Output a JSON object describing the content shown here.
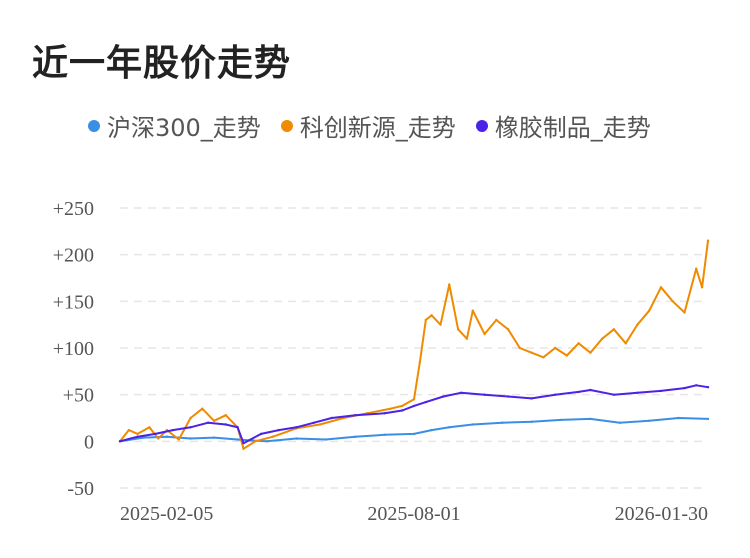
{
  "title": "近一年股价走势",
  "legend": [
    {
      "name": "沪深300_走势",
      "color": "#3a8ee6"
    },
    {
      "name": "科创新源_走势",
      "color": "#f08a00"
    },
    {
      "name": "橡胶制品_走势",
      "color": "#4a22e8"
    }
  ],
  "chart_data": {
    "type": "line",
    "title": "近一年股价走势",
    "xlabel": "",
    "ylabel": "",
    "ylim": [
      -50,
      250
    ],
    "y_ticks": [
      250,
      200,
      150,
      100,
      50,
      0,
      -50
    ],
    "y_tick_labels": [
      "+250",
      "+200",
      "+150",
      "+100",
      "+50",
      "0",
      "-50"
    ],
    "x_range": [
      0,
      1
    ],
    "x_ticks": [
      {
        "x": 0.0,
        "label": "2025-02-05"
      },
      {
        "x": 0.5,
        "label": "2025-08-01"
      },
      {
        "x": 1.0,
        "label": "2026-01-30"
      }
    ],
    "grid": true,
    "series": [
      {
        "name": "沪深300_走势",
        "color": "#3a8ee6",
        "x": [
          0,
          0.04,
          0.08,
          0.12,
          0.16,
          0.2,
          0.22,
          0.25,
          0.3,
          0.35,
          0.4,
          0.45,
          0.5,
          0.53,
          0.56,
          0.6,
          0.65,
          0.7,
          0.75,
          0.8,
          0.85,
          0.9,
          0.95,
          1.0
        ],
        "values": [
          0,
          4,
          5,
          3,
          4,
          2,
          1,
          0,
          3,
          2,
          5,
          7,
          8,
          12,
          15,
          18,
          20,
          21,
          23,
          24,
          20,
          22,
          25,
          24
        ]
      },
      {
        "name": "科创新源_走势",
        "color": "#f08a00",
        "x": [
          0,
          0.015,
          0.03,
          0.05,
          0.065,
          0.08,
          0.1,
          0.12,
          0.14,
          0.16,
          0.18,
          0.2,
          0.21,
          0.23,
          0.26,
          0.3,
          0.34,
          0.38,
          0.42,
          0.46,
          0.48,
          0.5,
          0.51,
          0.52,
          0.53,
          0.545,
          0.56,
          0.575,
          0.59,
          0.6,
          0.62,
          0.64,
          0.66,
          0.68,
          0.7,
          0.72,
          0.74,
          0.76,
          0.78,
          0.8,
          0.82,
          0.84,
          0.86,
          0.88,
          0.9,
          0.92,
          0.94,
          0.96,
          0.98,
          0.99,
          1.0
        ],
        "values": [
          0,
          12,
          8,
          15,
          3,
          12,
          2,
          25,
          35,
          22,
          28,
          15,
          -8,
          0,
          5,
          14,
          18,
          25,
          30,
          35,
          38,
          45,
          85,
          130,
          135,
          125,
          168,
          120,
          110,
          140,
          115,
          130,
          120,
          100,
          95,
          90,
          100,
          92,
          105,
          95,
          110,
          120,
          105,
          125,
          140,
          165,
          150,
          138,
          185,
          165,
          215
        ]
      },
      {
        "name": "橡胶制品_走势",
        "color": "#4a22e8",
        "x": [
          0,
          0.03,
          0.06,
          0.09,
          0.12,
          0.15,
          0.18,
          0.2,
          0.21,
          0.24,
          0.27,
          0.3,
          0.33,
          0.36,
          0.4,
          0.45,
          0.48,
          0.5,
          0.52,
          0.55,
          0.58,
          0.62,
          0.66,
          0.7,
          0.74,
          0.78,
          0.8,
          0.84,
          0.88,
          0.92,
          0.96,
          0.98,
          1.0
        ],
        "values": [
          0,
          5,
          8,
          12,
          15,
          20,
          18,
          15,
          -2,
          8,
          12,
          15,
          20,
          25,
          28,
          30,
          33,
          38,
          42,
          48,
          52,
          50,
          48,
          46,
          50,
          53,
          55,
          50,
          52,
          54,
          57,
          60,
          58
        ]
      }
    ]
  }
}
